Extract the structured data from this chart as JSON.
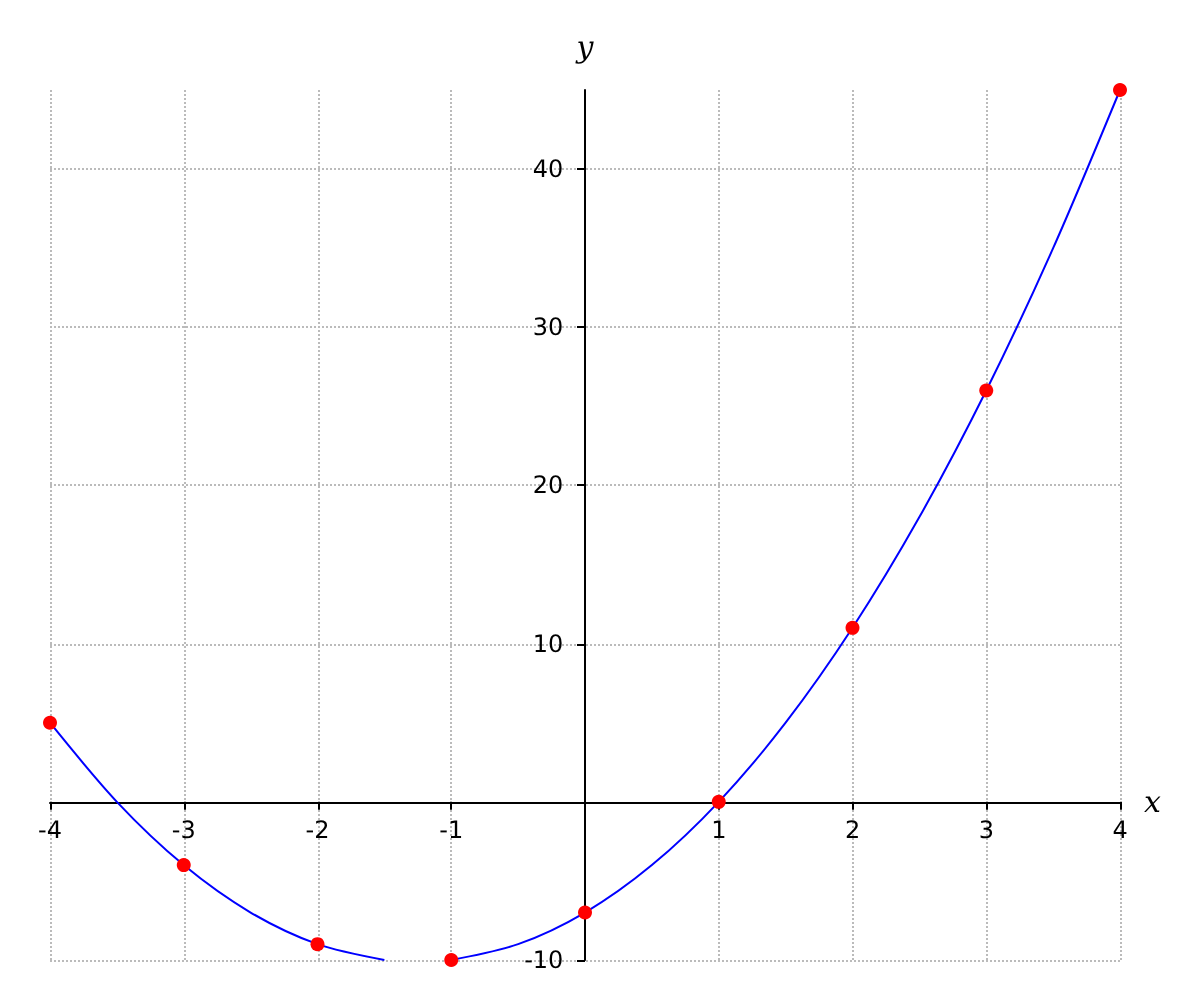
{
  "chart_data": {
    "type": "line",
    "xlabel": "x",
    "ylabel": "y",
    "xlim": [
      -4,
      4
    ],
    "ylim": [
      -10,
      45
    ],
    "xticks": [
      -4,
      -3,
      -2,
      -1,
      1,
      2,
      3,
      4
    ],
    "yticks": [
      -10,
      10,
      20,
      30,
      40
    ],
    "grid": true,
    "series": [
      {
        "type": "line",
        "color": "#0000ff",
        "marker": "none",
        "x": [
          -4,
          -3.5,
          -3,
          -2.5,
          -2,
          -1.5,
          -1.25,
          -1,
          -0.5,
          0,
          0.5,
          1,
          1.5,
          2,
          2.5,
          3,
          3.5,
          4
        ],
        "values": [
          5,
          0,
          -4,
          -7,
          -9,
          -10,
          null,
          -10,
          -9,
          -7,
          -4,
          0,
          5,
          11,
          18,
          26,
          35,
          45
        ]
      },
      {
        "type": "scatter",
        "color": "#ff0000",
        "marker": "circle",
        "x": [
          -4,
          -3,
          -2,
          -1,
          0,
          1,
          2,
          3,
          4
        ],
        "values": [
          5,
          -4,
          -9,
          -10,
          -7,
          0,
          11,
          26,
          45
        ]
      }
    ]
  }
}
